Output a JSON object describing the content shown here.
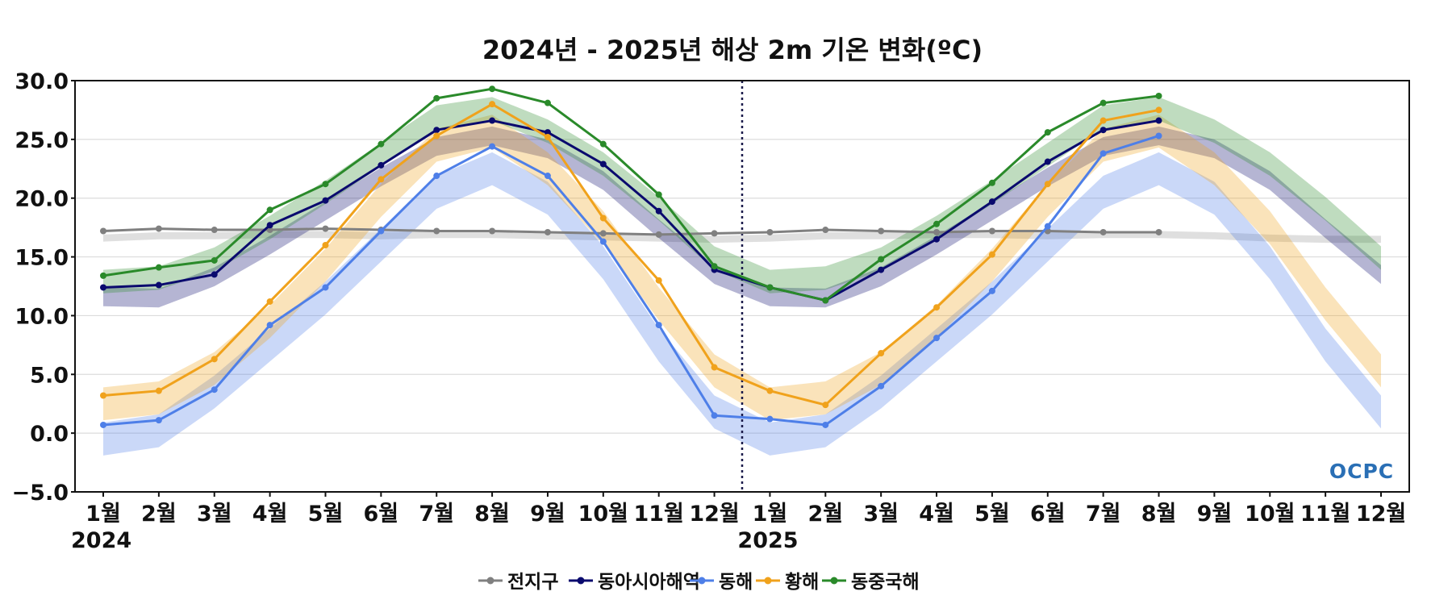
{
  "chart_data": {
    "type": "line",
    "title": "2024년 - 2025년 해상 2m 기온 변화(ºC)",
    "xlabel": "",
    "ylabel": "",
    "ylim": [
      -5,
      30
    ],
    "yticks": [
      "30.0",
      "25.0",
      "20.0",
      "15.0",
      "10.0",
      "5.0",
      "0.0",
      "−5.0"
    ],
    "ytick_values": [
      30,
      25,
      20,
      15,
      10,
      5,
      0,
      -5
    ],
    "categories": [
      "1월",
      "2월",
      "3월",
      "4월",
      "5월",
      "6월",
      "7월",
      "8월",
      "9월",
      "10월",
      "11월",
      "12월",
      "1월",
      "2월",
      "3월",
      "4월",
      "5월",
      "6월",
      "7월",
      "8월",
      "9월",
      "10월",
      "11월",
      "12월"
    ],
    "year_labels": [
      {
        "text": "2024",
        "index": 0
      },
      {
        "text": "2025",
        "index": 12
      }
    ],
    "divider_after_index": 11,
    "grid": true,
    "legend_position": "bottom-center",
    "logo": "OCPC",
    "series": [
      {
        "name": "전지구",
        "color": "#808080",
        "values": [
          17.2,
          17.4,
          17.3,
          17.3,
          17.4,
          17.3,
          17.2,
          17.2,
          17.1,
          17.0,
          16.9,
          17.0,
          17.1,
          17.3,
          17.2,
          17.1,
          17.2,
          17.2,
          17.1,
          17.1,
          null,
          null,
          null,
          null
        ],
        "normal": [
          16.6,
          16.8,
          16.8,
          16.9,
          16.9,
          16.8,
          16.9,
          16.9,
          16.8,
          16.7,
          16.6,
          16.5,
          16.6,
          16.8,
          16.8,
          16.9,
          16.9,
          16.8,
          16.9,
          16.9,
          16.8,
          16.6,
          16.5,
          16.5
        ],
        "band_width": 0.3
      },
      {
        "name": "동아시아해역",
        "color": "#0a0a6e",
        "values": [
          12.4,
          12.6,
          13.5,
          17.7,
          19.8,
          22.8,
          25.8,
          26.6,
          25.6,
          22.9,
          18.9,
          13.9,
          12.4,
          11.3,
          13.9,
          16.5,
          19.7,
          23.1,
          25.8,
          26.6,
          null,
          null,
          null,
          null
        ],
        "normal": [
          11.6,
          11.5,
          13.3,
          16.0,
          18.9,
          21.8,
          24.4,
          25.3,
          24.2,
          21.5,
          17.4,
          13.5,
          11.6,
          11.5,
          13.3,
          16.0,
          18.9,
          21.8,
          24.4,
          25.3,
          24.2,
          21.5,
          17.4,
          13.5
        ],
        "band_width": 0.8
      },
      {
        "name": "동해",
        "color": "#4e7fe8",
        "values": [
          0.7,
          1.1,
          3.7,
          9.2,
          12.4,
          17.2,
          21.9,
          24.4,
          21.9,
          16.3,
          9.2,
          1.5,
          1.2,
          0.7,
          4.0,
          8.1,
          12.1,
          17.6,
          23.8,
          25.3,
          null,
          null,
          null,
          null
        ],
        "normal": [
          -0.5,
          0.2,
          3.5,
          7.5,
          11.5,
          16.0,
          20.5,
          22.5,
          20.0,
          14.5,
          7.5,
          1.8,
          -0.5,
          0.2,
          3.5,
          7.5,
          11.5,
          16.0,
          20.5,
          22.5,
          20.0,
          14.5,
          7.5,
          1.8
        ],
        "band_width": 1.4
      },
      {
        "name": "황해",
        "color": "#f0a21c",
        "values": [
          3.2,
          3.6,
          6.3,
          11.2,
          16.0,
          21.6,
          25.3,
          28.0,
          25.2,
          18.3,
          13.0,
          5.6,
          3.6,
          2.4,
          6.8,
          10.7,
          15.2,
          21.2,
          26.6,
          27.5,
          null,
          null,
          null,
          null
        ],
        "normal": [
          2.5,
          3.0,
          5.5,
          9.5,
          14.3,
          19.8,
          24.5,
          25.7,
          22.5,
          17.5,
          11.0,
          5.3,
          2.5,
          3.0,
          5.5,
          9.5,
          14.3,
          19.8,
          24.5,
          25.7,
          22.5,
          17.5,
          11.0,
          5.3
        ],
        "band_width": 1.4
      },
      {
        "name": "동중국해",
        "color": "#2a8a2a",
        "values": [
          13.4,
          14.1,
          14.7,
          19.0,
          21.2,
          24.6,
          28.5,
          29.3,
          28.1,
          24.6,
          20.3,
          14.2,
          12.4,
          11.3,
          14.8,
          17.8,
          21.3,
          25.6,
          28.1,
          28.7,
          null,
          null,
          null,
          null
        ],
        "normal": [
          12.9,
          13.2,
          14.8,
          17.5,
          20.5,
          23.7,
          26.9,
          27.6,
          25.7,
          22.9,
          19.1,
          14.9,
          12.9,
          13.2,
          14.8,
          17.5,
          20.5,
          23.7,
          26.9,
          27.6,
          25.7,
          22.9,
          19.1,
          14.9
        ],
        "band_width": 1.0
      }
    ]
  }
}
